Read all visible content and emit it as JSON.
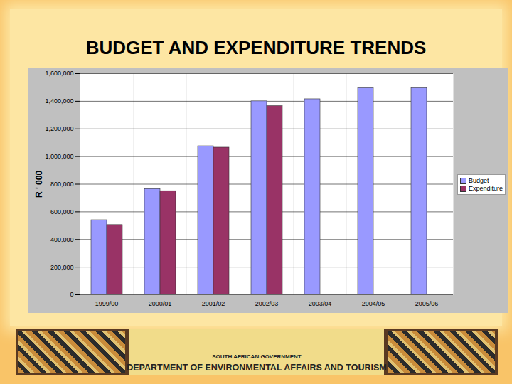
{
  "chart_data": {
    "type": "bar",
    "title": "BUDGET AND EXPENDITURE TRENDS",
    "y_label": "R ' 000",
    "categories": [
      "1999/00",
      "2000/01",
      "2001/02",
      "2002/03",
      "2003/04",
      "2004/05",
      "2005/06"
    ],
    "series": [
      {
        "name": "Budget",
        "color": "#9999ff",
        "values": [
          540000,
          765000,
          1075000,
          1400000,
          1415000,
          1495000,
          1495000
        ]
      },
      {
        "name": "Expenditure",
        "color": "#993366",
        "values": [
          505000,
          750000,
          1065000,
          1365000,
          null,
          null,
          null
        ]
      }
    ],
    "ylim": [
      0,
      1600000
    ],
    "yticks": [
      0,
      {
        "value": 200000,
        "label": "200,000"
      },
      {
        "value": 400000,
        "label": "400,000"
      },
      {
        "value": 600000,
        "label": "600,000"
      },
      {
        "value": 800000,
        "label": "800,000"
      },
      {
        "value": 1000000,
        "label": "1,000,000"
      },
      {
        "value": 1200000,
        "label": "1,200,000"
      },
      {
        "value": 1400000,
        "label": "1,400,000"
      },
      {
        "value": 1600000,
        "label": "1,600,000"
      }
    ],
    "grid": true,
    "legend": "right",
    "annotations": [
      "SOUTH AFRICAN GOVERNMENT",
      "DEPARTMENT OF ENVIRONMENTAL AFFAIRS AND TOURISM"
    ]
  }
}
